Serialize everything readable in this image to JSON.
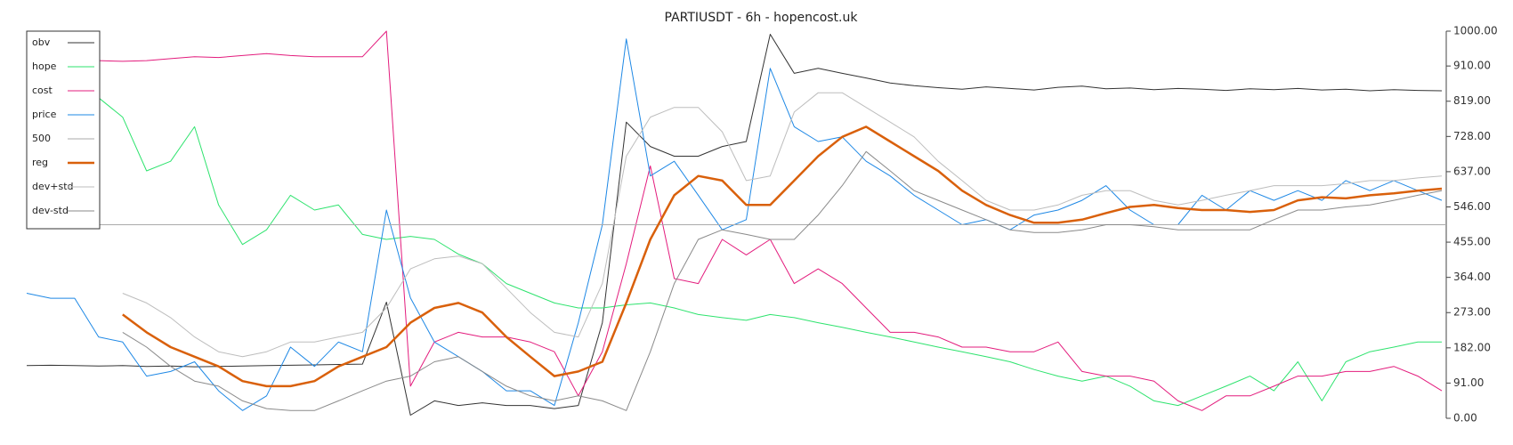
{
  "chart_data": {
    "type": "line",
    "title": "PARTIUSDT - 6h - hopencost.uk",
    "ylim": [
      0,
      1000
    ],
    "yticks": [
      {
        "value": 0,
        "label": "0.00"
      },
      {
        "value": 91,
        "label": "91.00"
      },
      {
        "value": 182,
        "label": "182.00"
      },
      {
        "value": 273,
        "label": "273.00"
      },
      {
        "value": 364,
        "label": "364.00"
      },
      {
        "value": 455,
        "label": "455.00"
      },
      {
        "value": 546,
        "label": "546.00"
      },
      {
        "value": 637,
        "label": "637.00"
      },
      {
        "value": 728,
        "label": "728.00"
      },
      {
        "value": 819,
        "label": "819.00"
      },
      {
        "value": 910,
        "label": "910.00"
      },
      {
        "value": 1000,
        "label": "1000.00"
      }
    ],
    "legend": "upper left",
    "series": [
      {
        "name": "obv",
        "color": "#333333",
        "width": 1,
        "values": [
          136,
          137,
          136,
          135,
          136,
          134,
          135,
          133,
          134,
          135,
          136,
          137,
          138,
          139,
          140,
          300,
          8,
          45,
          33,
          40,
          33,
          33,
          25,
          33,
          247,
          765,
          702,
          677,
          677,
          702,
          715,
          992,
          891,
          904,
          891,
          879,
          866,
          859,
          854,
          850,
          856,
          852,
          848,
          855,
          858,
          851,
          853,
          849,
          852,
          850,
          847,
          851,
          849,
          852,
          848,
          850,
          846,
          849,
          847,
          846
        ]
      },
      {
        "name": "hope",
        "color": "#2ee36e",
        "width": 1,
        "values": [
          null,
          null,
          null,
          828,
          778,
          639,
          664,
          753,
          551,
          449,
          487,
          576,
          538,
          551,
          475,
          462,
          470,
          462,
          424,
          399,
          348,
          323,
          298,
          285,
          285,
          293,
          298,
          285,
          268,
          260,
          253,
          268,
          260,
          247,
          235,
          222,
          210,
          197,
          184,
          172,
          159,
          146,
          126,
          109,
          96,
          109,
          83,
          45,
          33,
          58,
          83,
          109,
          71,
          146,
          45,
          146,
          172,
          184,
          197,
          197
        ]
      },
      {
        "name": "cost",
        "color": "#e31c7d",
        "width": 1,
        "values": [
          null,
          null,
          null,
          924,
          922,
          924,
          929,
          934,
          932,
          937,
          942,
          937,
          934,
          934,
          934,
          1000,
          83,
          197,
          222,
          210,
          210,
          197,
          172,
          58,
          172,
          399,
          652,
          361,
          348,
          462,
          422,
          462,
          348,
          386,
          348,
          285,
          222,
          222,
          210,
          184,
          184,
          172,
          172,
          197,
          121,
          109,
          109,
          96,
          45,
          20,
          58,
          58,
          83,
          109,
          109,
          121,
          121,
          134,
          109,
          71
        ]
      },
      {
        "name": "price",
        "color": "#1e88e5",
        "width": 1,
        "values": [
          323,
          310,
          310,
          210,
          197,
          109,
          121,
          146,
          71,
          20,
          58,
          184,
          134,
          197,
          172,
          538,
          311,
          197,
          159,
          121,
          71,
          71,
          33,
          247,
          500,
          980,
          626,
          664,
          576,
          487,
          513,
          904,
          753,
          715,
          727,
          664,
          626,
          576,
          538,
          500,
          513,
          487,
          525,
          538,
          563,
          601,
          538,
          500,
          500,
          576,
          538,
          588,
          563,
          588,
          563,
          614,
          588,
          614,
          588,
          563
        ]
      },
      {
        "name": "500",
        "color": "#aaaaaa",
        "width": 1,
        "value": 500
      },
      {
        "name": "reg",
        "color": "#d9600b",
        "width": 2.5,
        "values": [
          null,
          null,
          null,
          null,
          268,
          222,
          184,
          159,
          134,
          96,
          83,
          83,
          96,
          134,
          159,
          184,
          247,
          285,
          298,
          273,
          210,
          159,
          109,
          121,
          146,
          298,
          462,
          576,
          626,
          614,
          551,
          551,
          614,
          677,
          727,
          753,
          715,
          677,
          639,
          588,
          551,
          525,
          505,
          505,
          513,
          530,
          546,
          551,
          543,
          538,
          538,
          533,
          538,
          563,
          571,
          568,
          576,
          581,
          588,
          593
        ]
      },
      {
        "name": "dev+std",
        "color": "#bdbdbd",
        "width": 1,
        "values": [
          null,
          null,
          null,
          null,
          323,
          298,
          260,
          210,
          172,
          159,
          172,
          197,
          197,
          210,
          222,
          285,
          386,
          412,
          419,
          399,
          336,
          273,
          222,
          210,
          348,
          677,
          778,
          803,
          803,
          740,
          614,
          626,
          791,
          841,
          841,
          803,
          765,
          727,
          664,
          614,
          563,
          538,
          538,
          551,
          576,
          588,
          588,
          563,
          551,
          563,
          576,
          588,
          601,
          601,
          601,
          606,
          614,
          614,
          621,
          626
        ]
      },
      {
        "name": "dev-std",
        "color": "#8a8a8a",
        "width": 1,
        "values": [
          null,
          null,
          null,
          null,
          222,
          184,
          134,
          96,
          83,
          45,
          25,
          20,
          20,
          45,
          71,
          96,
          109,
          146,
          159,
          121,
          83,
          58,
          45,
          58,
          45,
          20,
          172,
          348,
          462,
          487,
          475,
          462,
          462,
          525,
          601,
          689,
          639,
          588,
          563,
          538,
          513,
          487,
          480,
          480,
          487,
          500,
          500,
          495,
          487,
          487,
          487,
          487,
          513,
          538,
          538,
          546,
          551,
          563,
          576,
          588
        ]
      }
    ]
  }
}
